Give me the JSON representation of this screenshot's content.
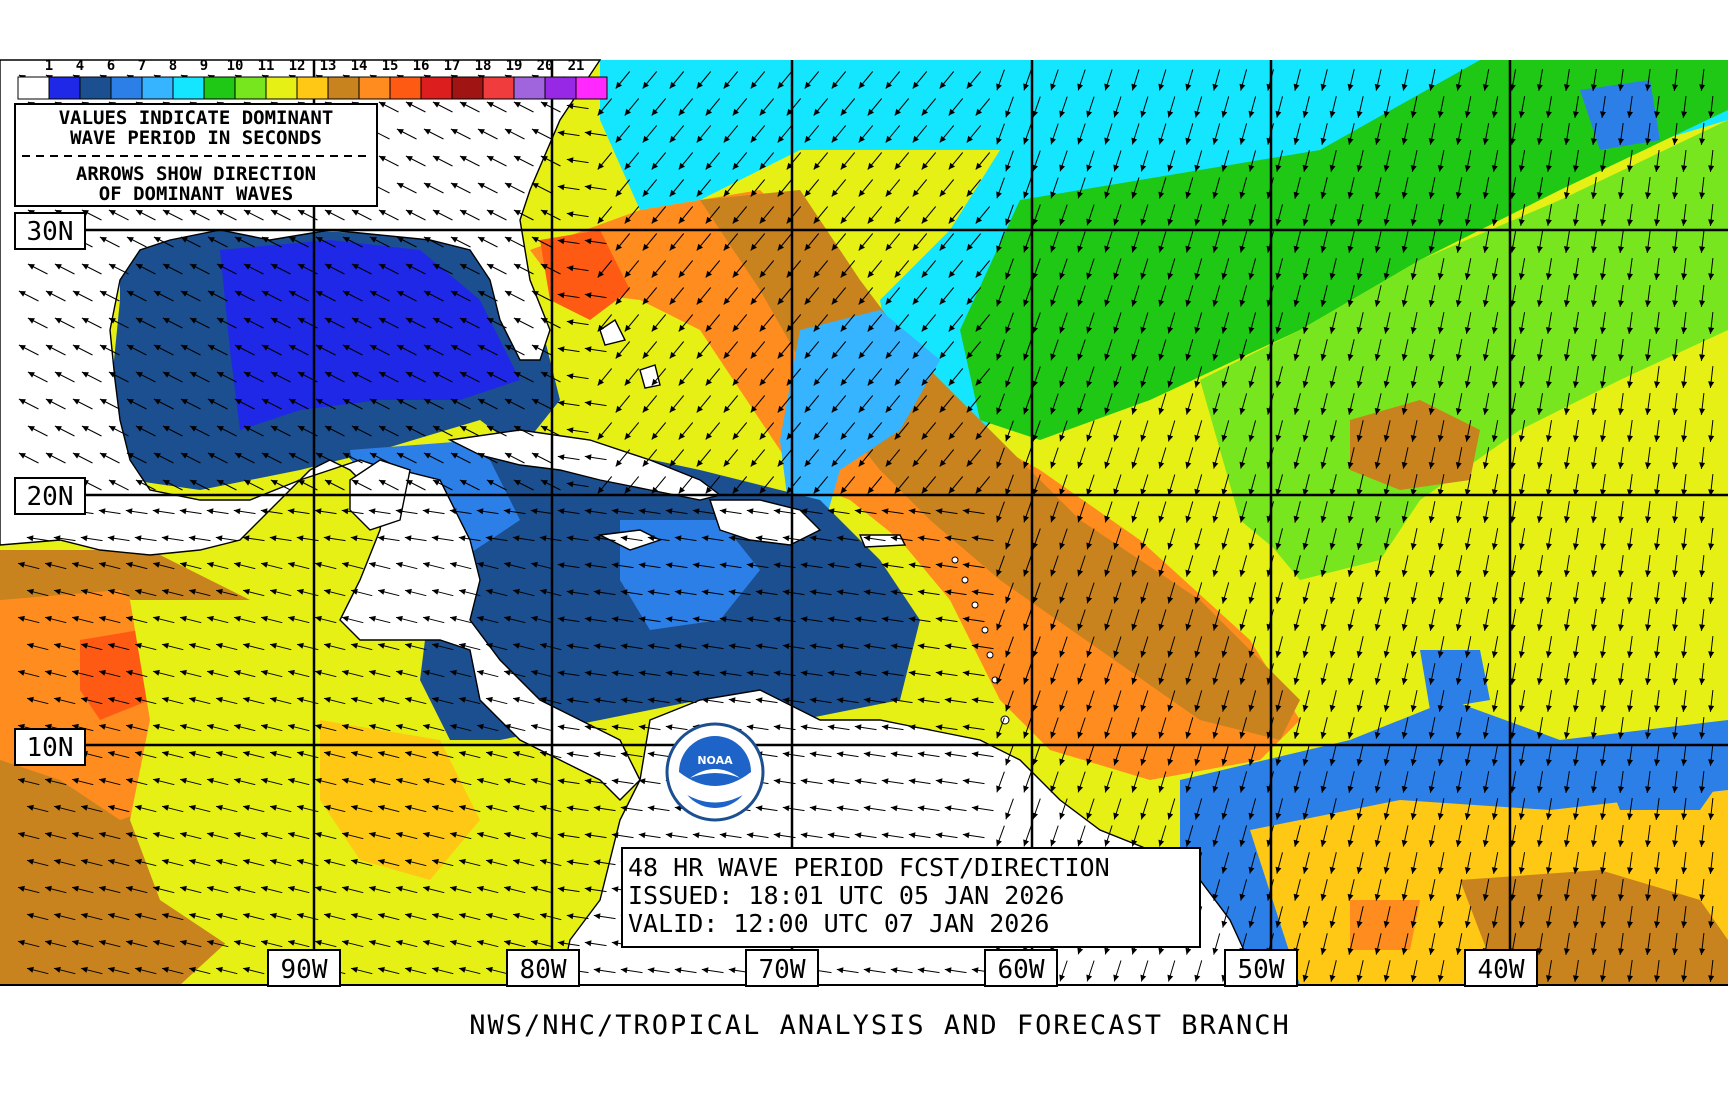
{
  "legend": {
    "scale_labels": [
      "1",
      "4",
      "6",
      "7",
      "8",
      "9",
      "10",
      "11",
      "12",
      "13",
      "14",
      "15",
      "16",
      "17",
      "18",
      "19",
      "20",
      "21"
    ],
    "scale_colors": [
      "#ffffff",
      "#1e28e6",
      "#1c4f8f",
      "#2d7fe8",
      "#37b4ff",
      "#14e6ff",
      "#1ec814",
      "#78e61e",
      "#e6f014",
      "#ffc814",
      "#c8821e",
      "#ff8c1e",
      "#ff5a14",
      "#dc1e1e",
      "#a01414",
      "#f03c3c",
      "#a064dc",
      "#9628e6",
      "#ff28ff"
    ]
  },
  "info_box": {
    "line1": "VALUES INDICATE DOMINANT",
    "line2": "WAVE PERIOD IN SECONDS",
    "line3": "ARROWS SHOW DIRECTION",
    "line4": "OF DOMINANT WAVES"
  },
  "lat_labels": [
    "30N",
    "20N",
    "10N"
  ],
  "lon_labels": [
    "90W",
    "80W",
    "70W",
    "60W",
    "50W",
    "40W"
  ],
  "forecast_box": {
    "title": "48 HR WAVE PERIOD FCST/DIRECTION",
    "issued": "ISSUED: 18:01 UTC 05 JAN 2026",
    "valid": "VALID:  12:00 UTC 07 JAN 2026"
  },
  "logo": {
    "text": "NOAA"
  },
  "footer": "NWS/NHC/TROPICAL ANALYSIS AND FORECAST BRANCH",
  "colors": {
    "land": "#ffffff",
    "coast": "#000000",
    "period_9": "#14e6ff",
    "period_10": "#1ec814",
    "period_11": "#78e61e",
    "period_12": "#e6f014",
    "period_13": "#ffc814",
    "period_14": "#c8821e",
    "period_15": "#ff8c1e",
    "period_16": "#ff5a14",
    "period_6": "#1c4f8f",
    "period_7": "#2d7fe8",
    "period_8": "#37b4ff",
    "period_4": "#1e28e6"
  }
}
